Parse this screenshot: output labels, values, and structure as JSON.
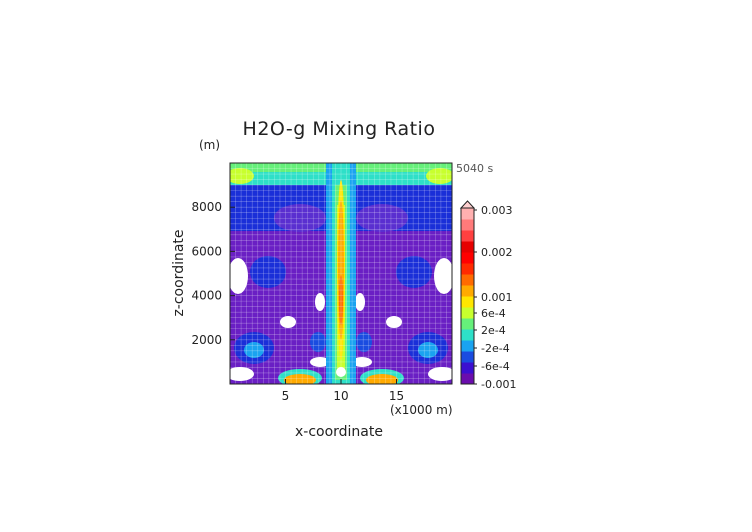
{
  "chart_data": {
    "type": "heatmap",
    "title": "H2O-g Mixing Ratio",
    "time_label": "5040 s",
    "xlabel": "x-coordinate",
    "ylabel": "z-coordinate",
    "x_unit_label": "(x1000 m)",
    "y_unit_label": "(m)",
    "xlim": [
      0,
      20
    ],
    "ylim": [
      0,
      10000
    ],
    "x_ticks": [
      5,
      10,
      15
    ],
    "x_tick_labels": [
      "5",
      "10",
      "15"
    ],
    "y_ticks": [
      2000,
      4000,
      6000,
      8000
    ],
    "y_tick_labels": [
      "2000",
      "4000",
      "6000",
      "8000"
    ],
    "grid": true,
    "colorbar": {
      "tick_labels": [
        "0.003",
        "0.002",
        "0.001",
        "6e-4",
        "2e-4",
        "-2e-4",
        "-6e-4",
        "-0.001"
      ],
      "colors": [
        "#6a0dad",
        "#3b0fd0",
        "#1a4ce0",
        "#1aa3f0",
        "#2ee0c8",
        "#66f07a",
        "#c8ff2e",
        "#ffe600",
        "#ffaa00",
        "#ff6a00",
        "#ff2a00",
        "#ff0000",
        "#e60000",
        "#ff4040",
        "#ff7a7a",
        "#ffb0b0"
      ],
      "extend_max": true
    }
  },
  "field_note": ""
}
